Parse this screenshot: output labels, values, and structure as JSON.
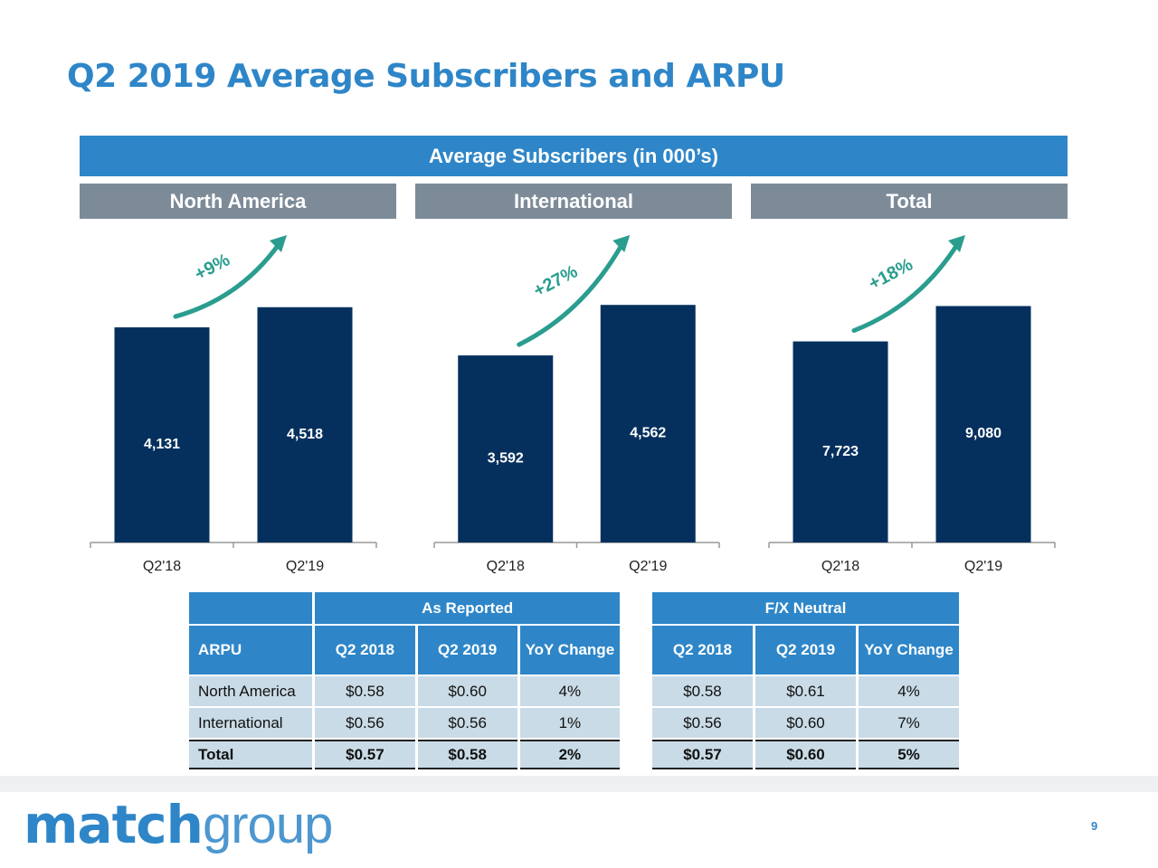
{
  "title": "Q2 2019 Average Subscribers and ARPU",
  "banner": "Average Subscribers (in 000’s)",
  "regions": [
    "North America",
    "International",
    "Total"
  ],
  "colors": {
    "accent": "#2e86c8",
    "bar": "#05305e",
    "header_gray": "#7d8b99",
    "arrow": "#2a9d8f",
    "cell": "#c9dbe6"
  },
  "chart_data": [
    {
      "type": "bar",
      "title": "North America",
      "categories": [
        "Q2'18",
        "Q2'19"
      ],
      "values": [
        4131,
        4518
      ],
      "labels": [
        "4,131",
        "4,518"
      ],
      "growth": "+9%",
      "ylim": [
        0,
        5000
      ]
    },
    {
      "type": "bar",
      "title": "International",
      "categories": [
        "Q2'18",
        "Q2'19"
      ],
      "values": [
        3592,
        4562
      ],
      "labels": [
        "3,592",
        "4,562"
      ],
      "growth": "+27%",
      "ylim": [
        0,
        5000
      ]
    },
    {
      "type": "bar",
      "title": "Total",
      "categories": [
        "Q2'18",
        "Q2'19"
      ],
      "values": [
        7723,
        9080
      ],
      "labels": [
        "7,723",
        "9,080"
      ],
      "growth": "+18%",
      "ylim": [
        0,
        10000
      ]
    }
  ],
  "table_reported": {
    "group": "As Reported",
    "corner": "ARPU",
    "columns": [
      "Q2 2018",
      "Q2 2019",
      "YoY Change"
    ],
    "rows": [
      {
        "label": "North America",
        "cells": [
          "$0.58",
          "$0.60",
          "4%"
        ]
      },
      {
        "label": "International",
        "cells": [
          "$0.56",
          "$0.56",
          "1%"
        ]
      },
      {
        "label": "Total",
        "cells": [
          "$0.57",
          "$0.58",
          "2%"
        ]
      }
    ]
  },
  "table_fx": {
    "group": "F/X Neutral",
    "columns": [
      "Q2 2018",
      "Q2 2019",
      "YoY Change"
    ],
    "rows": [
      {
        "cells": [
          "$0.58",
          "$0.61",
          "4%"
        ]
      },
      {
        "cells": [
          "$0.56",
          "$0.60",
          "7%"
        ]
      },
      {
        "cells": [
          "$0.57",
          "$0.60",
          "5%"
        ]
      }
    ]
  },
  "logo": {
    "part1": "match",
    "part2": "group"
  },
  "page_number": "9"
}
